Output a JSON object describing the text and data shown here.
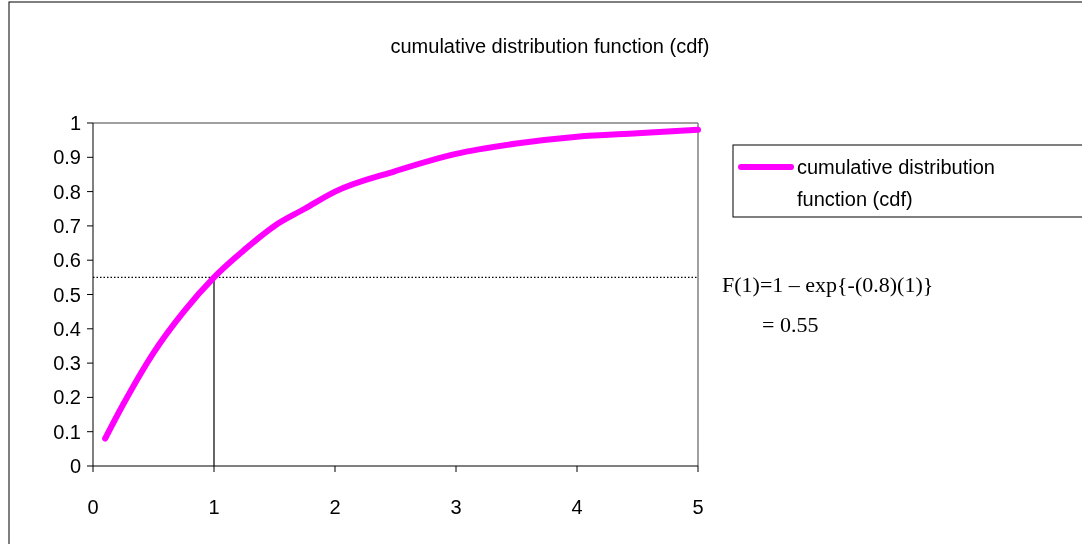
{
  "chart_data": {
    "type": "line",
    "title": "cumulative distribution function (cdf)",
    "x": [
      0.1,
      0.25,
      0.5,
      0.75,
      1,
      1.25,
      1.5,
      1.75,
      2,
      2.5,
      3,
      3.5,
      4,
      4.5,
      5
    ],
    "series": [
      {
        "name": "cumulative distribution function (cdf)",
        "color": "#ff00ff",
        "values": [
          0.08,
          0.18,
          0.33,
          0.45,
          0.55,
          0.63,
          0.7,
          0.75,
          0.8,
          0.86,
          0.91,
          0.94,
          0.96,
          0.97,
          0.98
        ]
      }
    ],
    "xlim": [
      0,
      5
    ],
    "xticks": [
      0,
      1,
      2,
      3,
      4,
      5
    ],
    "ylim": [
      0,
      1
    ],
    "yticks": [
      0,
      0.1,
      0.2,
      0.3,
      0.4,
      0.5,
      0.6,
      0.7,
      0.8,
      0.9,
      1
    ],
    "ref_lines": [
      {
        "axis": "y",
        "value": 0.55,
        "color": "#000000",
        "line_style": "dotted"
      },
      {
        "axis": "x",
        "value": 1,
        "color": "#000000",
        "line_style": "solid"
      }
    ],
    "annotations": [
      "F(1)=1 – exp{-(0.8)(1)}",
      "= 0.55"
    ],
    "legend": "right",
    "grid": false,
    "marker": "none",
    "line_style": "solid"
  }
}
